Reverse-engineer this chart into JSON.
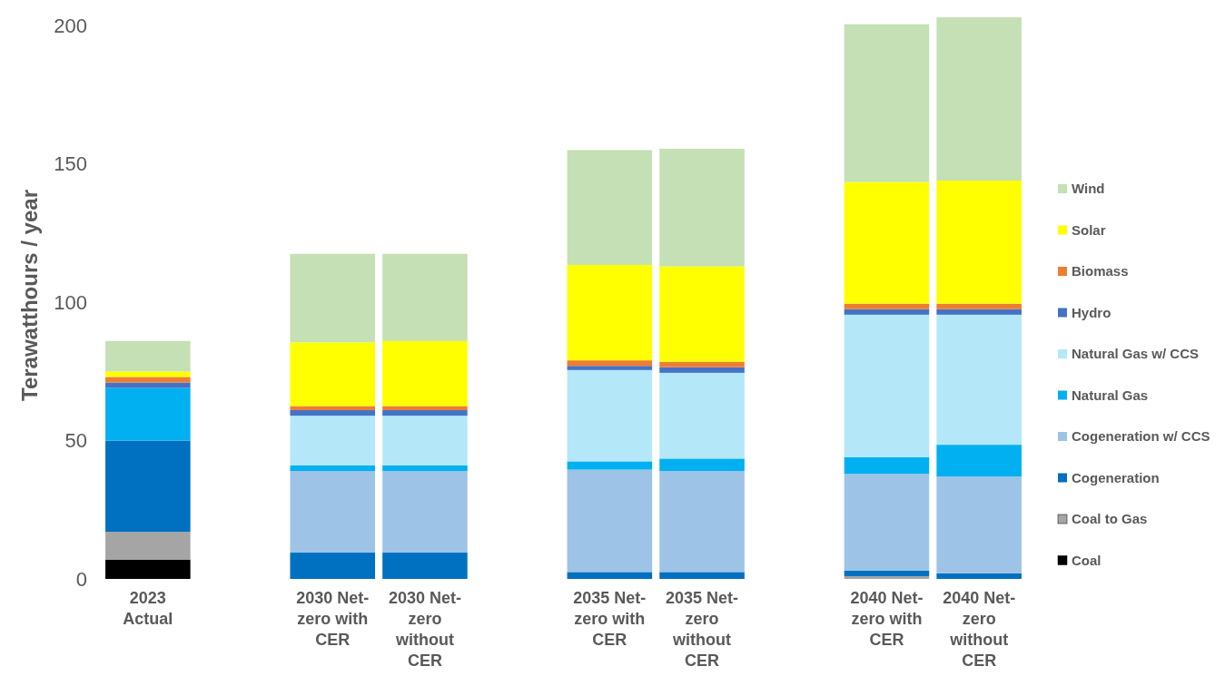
{
  "chart_data": {
    "type": "bar",
    "stacked": true,
    "ylabel": "Terawatthours / year",
    "categories": [
      "2023 Actual",
      null,
      "2030 Net-zero with CER",
      "2030 Net-zero without CER",
      null,
      "2035 Net-zero with CER",
      "2035 Net-zero without CER",
      null,
      "2040 Net-zero with CER",
      "2040 Net-zero without CER"
    ],
    "series": [
      {
        "name": "Coal",
        "color": "#000000",
        "values": [
          7,
          null,
          0,
          0,
          null,
          0,
          0,
          null,
          0,
          0
        ]
      },
      {
        "name": "Coal to Gas",
        "color": "#a5a5a5",
        "values": [
          10,
          null,
          null,
          null,
          null,
          null,
          null,
          null,
          1,
          null
        ]
      },
      {
        "name": "Cogeneration",
        "color": "#0070c0",
        "values": [
          33,
          null,
          9.5,
          9.5,
          null,
          2.5,
          2.5,
          null,
          2,
          2
        ]
      },
      {
        "name": "Cogeneration w/ CCS",
        "color": "#9dc3e6",
        "values": [
          0,
          null,
          29.5,
          29.5,
          null,
          37,
          36.5,
          null,
          35,
          35
        ]
      },
      {
        "name": "Natural Gas",
        "color": "#00b0f0",
        "values": [
          19,
          null,
          2,
          2,
          null,
          3,
          4.5,
          null,
          6,
          11.5
        ]
      },
      {
        "name": "Natural Gas w/ CCS",
        "color": "#b4e7f8",
        "values": [
          0,
          null,
          18,
          18,
          null,
          33,
          31,
          null,
          51.5,
          47
        ]
      },
      {
        "name": "Hydro",
        "color": "#4472c4",
        "values": [
          2,
          null,
          2,
          2,
          null,
          1.5,
          2,
          null,
          2,
          2
        ]
      },
      {
        "name": "Biomass",
        "color": "#ed7d31",
        "values": [
          2,
          null,
          1.5,
          1.5,
          null,
          2,
          2,
          null,
          2,
          2
        ]
      },
      {
        "name": "Solar",
        "color": "#ffff00",
        "values": [
          2,
          null,
          23,
          23.5,
          null,
          34.5,
          34.5,
          null,
          44,
          44.5
        ]
      },
      {
        "name": "Wind",
        "color": "#c5e0b4",
        "values": [
          11,
          null,
          32,
          31.5,
          null,
          41.5,
          42.5,
          null,
          57,
          59
        ]
      }
    ],
    "ylim": [
      0,
      205
    ],
    "yticks": [
      0,
      50,
      100,
      150,
      200
    ],
    "grid": false,
    "legend": "right"
  }
}
